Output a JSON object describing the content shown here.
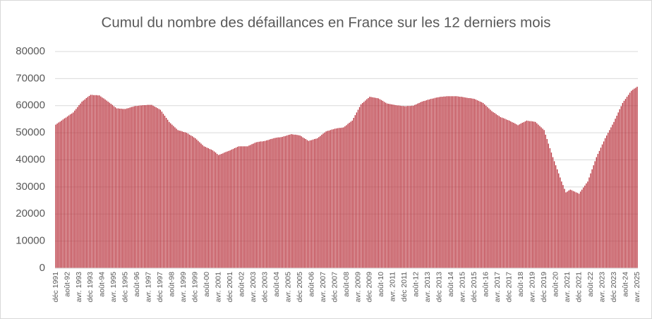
{
  "chart_data": {
    "type": "bar",
    "title": "Cumul du nombre des défaillances en France sur les 12 derniers mois",
    "color": "#b8323c",
    "ylim": [
      0,
      80000
    ],
    "yticks": [
      0,
      10000,
      20000,
      30000,
      40000,
      50000,
      60000,
      70000,
      80000
    ],
    "grid": true,
    "categories": [
      "déc 1991",
      null,
      null,
      null,
      null,
      null,
      null,
      null,
      "août-92",
      null,
      null,
      null,
      null,
      null,
      null,
      null,
      "avr. 1993",
      null,
      null,
      null,
      null,
      null,
      null,
      null,
      "déc 1993",
      null,
      null,
      null,
      null,
      null,
      null,
      null,
      "août-94",
      null,
      null,
      null,
      null,
      null,
      null,
      null,
      "avr. 1995",
      null,
      null,
      null,
      null,
      null,
      null,
      null,
      "déc 1995",
      null,
      null,
      null,
      null,
      null,
      null,
      null,
      "août-96",
      null,
      null,
      null,
      null,
      null,
      null,
      null,
      "avr. 1997",
      null,
      null,
      null,
      null,
      null,
      null,
      null,
      "déc 1997",
      null,
      null,
      null,
      null,
      null,
      null,
      null,
      "août-98",
      null,
      null,
      null,
      null,
      null,
      null,
      null,
      "avr. 1999",
      null,
      null,
      null,
      null,
      null,
      null,
      null,
      "déc 1999",
      null,
      null,
      null,
      null,
      null,
      null,
      null,
      "août-00",
      null,
      null,
      null,
      null,
      null,
      null,
      null,
      "avr. 2001",
      null,
      null,
      null,
      null,
      null,
      null,
      null,
      "déc 2001",
      null,
      null,
      null,
      null,
      null,
      null,
      null,
      "août-02",
      null,
      null,
      null,
      null,
      null,
      null,
      null,
      "avr. 2003",
      null,
      null,
      null,
      null,
      null,
      null,
      null,
      "déc 2003",
      null,
      null,
      null,
      null,
      null,
      null,
      null,
      "août-04",
      null,
      null,
      null,
      null,
      null,
      null,
      null,
      "avr. 2005",
      null,
      null,
      null,
      null,
      null,
      null,
      null,
      "déc 2005",
      null,
      null,
      null,
      null,
      null,
      null,
      null,
      "août-06",
      null,
      null,
      null,
      null,
      null,
      null,
      null,
      "avr. 2007",
      null,
      null,
      null,
      null,
      null,
      null,
      null,
      "déc 2007",
      null,
      null,
      null,
      null,
      null,
      null,
      null,
      "août-08",
      null,
      null,
      null,
      null,
      null,
      null,
      null,
      "avr. 2009",
      null,
      null,
      null,
      null,
      null,
      null,
      null,
      "déc 2009",
      null,
      null,
      null,
      null,
      null,
      null,
      null,
      "août-10",
      null,
      null,
      null,
      null,
      null,
      null,
      null,
      "avr. 2011",
      null,
      null,
      null,
      null,
      null,
      null,
      null,
      "déc 2011",
      null,
      null,
      null,
      null,
      null,
      null,
      null,
      "août-12",
      null,
      null,
      null,
      null,
      null,
      null,
      null,
      "avr. 2013",
      null,
      null,
      null,
      null,
      null,
      null,
      null,
      "déc 2013",
      null,
      null,
      null,
      null,
      null,
      null,
      null,
      "août-14",
      null,
      null,
      null,
      null,
      null,
      null,
      null,
      "avr. 2015",
      null,
      null,
      null,
      null,
      null,
      null,
      null,
      "déc 2015",
      null,
      null,
      null,
      null,
      null,
      null,
      null,
      "août-16",
      null,
      null,
      null,
      null,
      null,
      null,
      null,
      "avr. 2017",
      null,
      null,
      null,
      null,
      null,
      null,
      null,
      "déc 2017",
      null,
      null,
      null,
      null,
      null,
      null,
      null,
      "août-18",
      null,
      null,
      null,
      null,
      null,
      null,
      null,
      "avr. 2019",
      null,
      null,
      null,
      null,
      null,
      null,
      null,
      "déc 2019",
      null,
      null,
      null,
      null,
      null,
      null,
      null,
      "août-20",
      null,
      null,
      null,
      null,
      null,
      null,
      null,
      "avr. 2021",
      null,
      null,
      null,
      null,
      null,
      null,
      null,
      "déc 2021",
      null,
      null,
      null,
      null,
      null,
      null,
      null,
      "août-22",
      null,
      null,
      null,
      null,
      null,
      null,
      null,
      "avr. 2023",
      null,
      null,
      null,
      null,
      null,
      null,
      null,
      "déc 2023",
      null,
      null,
      null,
      null,
      null,
      null,
      null,
      "août-24",
      null,
      null,
      null,
      null,
      null,
      null,
      null,
      "avr. 2025"
    ],
    "values": [
      53000,
      53400,
      53800,
      54100,
      54500,
      54900,
      55300,
      55600,
      56000,
      56400,
      56800,
      57100,
      57500,
      58200,
      58800,
      59500,
      60200,
      60800,
      61500,
      61900,
      62300,
      62800,
      63200,
      63600,
      64000,
      64000,
      63900,
      63900,
      63900,
      63800,
      63800,
      63400,
      63000,
      62700,
      62300,
      61900,
      61500,
      61100,
      60700,
      60300,
      59800,
      59400,
      59000,
      59000,
      58900,
      58900,
      58800,
      58800,
      58800,
      59000,
      59100,
      59300,
      59500,
      59600,
      59800,
      59900,
      59900,
      60000,
      60100,
      60100,
      60200,
      60200,
      60200,
      60300,
      60300,
      60300,
      60300,
      60000,
      59700,
      59400,
      59100,
      58800,
      58500,
      57800,
      57000,
      56300,
      55500,
      54800,
      54000,
      53500,
      53000,
      52500,
      52000,
      51500,
      51000,
      50800,
      50700,
      50500,
      50300,
      50200,
      50000,
      49700,
      49300,
      49000,
      48700,
      48300,
      48000,
      47500,
      47000,
      46500,
      46000,
      45500,
      45000,
      44800,
      44500,
      44300,
      44000,
      43800,
      43500,
      43100,
      42700,
      42200,
      41800,
      42000,
      42200,
      42400,
      42700,
      42900,
      43100,
      43300,
      43500,
      43800,
      44000,
      44300,
      44500,
      44800,
      45000,
      45000,
      45000,
      45000,
      45000,
      45000,
      45000,
      45300,
      45500,
      45800,
      46000,
      46300,
      46500,
      46600,
      46700,
      46800,
      46800,
      46900,
      47000,
      47200,
      47300,
      47500,
      47700,
      47800,
      48000,
      48100,
      48200,
      48300,
      48300,
      48400,
      48500,
      48700,
      48800,
      49000,
      49200,
      49300,
      49500,
      49400,
      49300,
      49300,
      49200,
      49100,
      49000,
      48700,
      48300,
      48000,
      47700,
      47300,
      47000,
      47200,
      47300,
      47500,
      47700,
      47800,
      48000,
      48400,
      48800,
      49300,
      49700,
      50100,
      50500,
      50700,
      50800,
      51000,
      51200,
      51300,
      51500,
      51600,
      51700,
      51800,
      51800,
      51900,
      52000,
      52400,
      52800,
      53300,
      53700,
      54100,
      54500,
      55500,
      56500,
      57500,
      58500,
      59500,
      60500,
      61000,
      61400,
      61900,
      62400,
      62800,
      63300,
      63200,
      63100,
      63000,
      62900,
      62800,
      62700,
      62400,
      62100,
      61800,
      61400,
      61100,
      60800,
      60700,
      60600,
      60500,
      60400,
      60300,
      60200,
      60100,
      60100,
      60000,
      59900,
      59900,
      59800,
      59800,
      59900,
      59900,
      59900,
      60000,
      60000,
      60300,
      60500,
      60800,
      61000,
      61300,
      61500,
      61700,
      61800,
      62000,
      62200,
      62300,
      62500,
      62600,
      62700,
      62900,
      63000,
      63100,
      63200,
      63300,
      63300,
      63400,
      63400,
      63500,
      63500,
      63500,
      63500,
      63500,
      63500,
      63500,
      63500,
      63400,
      63300,
      63300,
      63200,
      63100,
      63000,
      62900,
      62800,
      62800,
      62700,
      62600,
      62500,
      62300,
      62000,
      61800,
      61500,
      61300,
      61000,
      60500,
      60000,
      59500,
      59000,
      58500,
      58000,
      57600,
      57300,
      56900,
      56500,
      56200,
      55800,
      55600,
      55400,
      55200,
      54900,
      54700,
      54500,
      54200,
      53900,
      53700,
      53400,
      53100,
      52800,
      53100,
      53400,
      53700,
      53900,
      54200,
      54500,
      54400,
      54300,
      54300,
      54200,
      54100,
      54000,
      53500,
      53000,
      52500,
      52000,
      51500,
      51000,
      49300,
      47700,
      46000,
      44300,
      42700,
      41000,
      39500,
      38000,
      36500,
      35000,
      33500,
      32000,
      30700,
      29300,
      28000,
      28300,
      28700,
      29000,
      28800,
      28500,
      28300,
      28000,
      27800,
      27500,
      28300,
      29000,
      29800,
      30500,
      31300,
      32000,
      33500,
      35000,
      36500,
      38000,
      39500,
      41000,
      42200,
      43300,
      44500,
      45700,
      46800,
      48000,
      49000,
      50000,
      51000,
      52000,
      53000,
      54000,
      55200,
      56300,
      57500,
      58700,
      59800,
      61000,
      61800,
      62500,
      63300,
      64000,
      64800,
      65500,
      65900,
      66300,
      66600,
      67000
    ]
  }
}
